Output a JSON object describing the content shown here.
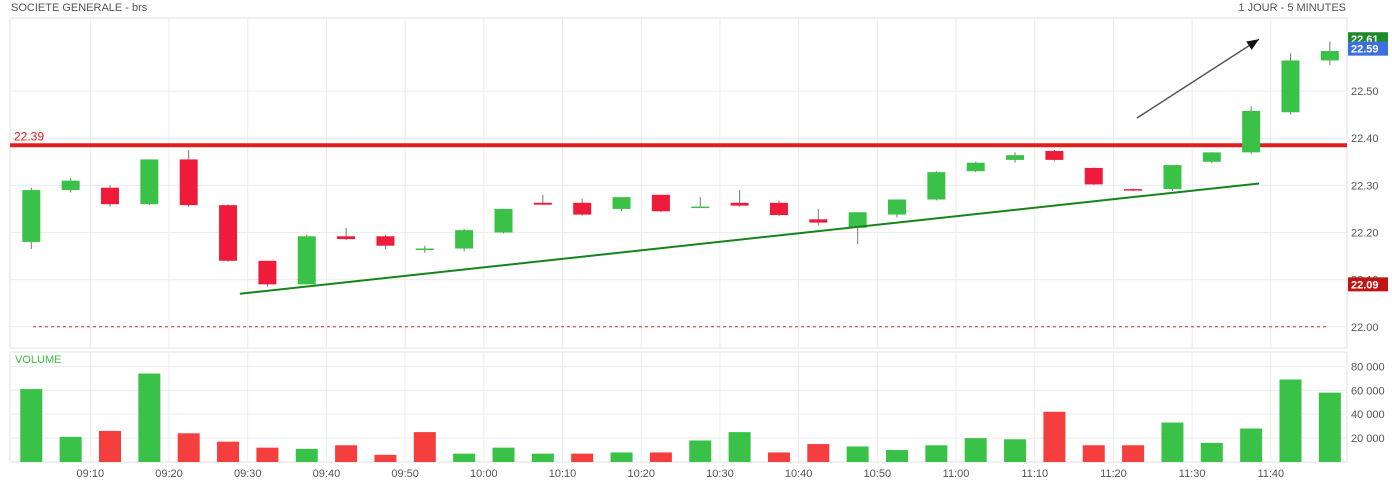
{
  "header": {
    "title": "SOCIETE GENERALE - brs",
    "period": "1 JOUR - 5 MINUTES"
  },
  "chart_data": [
    {
      "type": "candlestick",
      "ylim": [
        21.955,
        22.655
      ],
      "yticks": [
        "22.00",
        "22.10",
        "22.20",
        "22.30",
        "22.40",
        "22.50"
      ],
      "grid": true,
      "colors": {
        "up": "#3ac248",
        "down": "#ee1c3a",
        "wick": "#777777"
      },
      "candles": [
        {
          "o": 22.18,
          "h": 22.295,
          "l": 22.165,
          "c": 22.29
        },
        {
          "o": 22.29,
          "h": 22.315,
          "l": 22.285,
          "c": 22.31
        },
        {
          "o": 22.295,
          "h": 22.3,
          "l": 22.255,
          "c": 22.26
        },
        {
          "o": 22.26,
          "h": 22.355,
          "l": 22.258,
          "c": 22.355
        },
        {
          "o": 22.355,
          "h": 22.375,
          "l": 22.255,
          "c": 22.258
        },
        {
          "o": 22.258,
          "h": 22.26,
          "l": 22.138,
          "c": 22.14
        },
        {
          "o": 22.14,
          "h": 22.14,
          "l": 22.085,
          "c": 22.09
        },
        {
          "o": 22.09,
          "h": 22.195,
          "l": 22.09,
          "c": 22.192
        },
        {
          "o": 22.192,
          "h": 22.21,
          "l": 22.184,
          "c": 22.186
        },
        {
          "o": 22.192,
          "h": 22.195,
          "l": 22.165,
          "c": 22.172
        },
        {
          "o": 22.166,
          "h": 22.172,
          "l": 22.157,
          "c": 22.166
        },
        {
          "o": 22.166,
          "h": 22.208,
          "l": 22.16,
          "c": 22.205
        },
        {
          "o": 22.2,
          "h": 22.25,
          "l": 22.198,
          "c": 22.25
        },
        {
          "o": 22.263,
          "h": 22.28,
          "l": 22.258,
          "c": 22.259
        },
        {
          "o": 22.263,
          "h": 22.272,
          "l": 22.236,
          "c": 22.238
        },
        {
          "o": 22.25,
          "h": 22.275,
          "l": 22.245,
          "c": 22.275
        },
        {
          "o": 22.28,
          "h": 22.28,
          "l": 22.243,
          "c": 22.245
        },
        {
          "o": 22.255,
          "h": 22.275,
          "l": 22.252,
          "c": 22.255
        },
        {
          "o": 22.263,
          "h": 22.29,
          "l": 22.255,
          "c": 22.257
        },
        {
          "o": 22.263,
          "h": 22.268,
          "l": 22.235,
          "c": 22.237
        },
        {
          "o": 22.228,
          "h": 22.25,
          "l": 22.215,
          "c": 22.221
        },
        {
          "o": 22.21,
          "h": 22.243,
          "l": 22.175,
          "c": 22.243
        },
        {
          "o": 22.238,
          "h": 22.27,
          "l": 22.232,
          "c": 22.27
        },
        {
          "o": 22.27,
          "h": 22.33,
          "l": 22.268,
          "c": 22.328
        },
        {
          "o": 22.33,
          "h": 22.35,
          "l": 22.328,
          "c": 22.348
        },
        {
          "o": 22.354,
          "h": 22.37,
          "l": 22.348,
          "c": 22.364
        },
        {
          "o": 22.373,
          "h": 22.375,
          "l": 22.352,
          "c": 22.354
        },
        {
          "o": 22.337,
          "h": 22.338,
          "l": 22.301,
          "c": 22.302
        },
        {
          "o": 22.292,
          "h": 22.294,
          "l": 22.288,
          "c": 22.291
        },
        {
          "o": 22.292,
          "h": 22.343,
          "l": 22.288,
          "c": 22.343
        },
        {
          "o": 22.35,
          "h": 22.37,
          "l": 22.347,
          "c": 22.37
        },
        {
          "o": 22.37,
          "h": 22.468,
          "l": 22.366,
          "c": 22.458
        },
        {
          "o": 22.455,
          "h": 22.58,
          "l": 22.45,
          "c": 22.565
        },
        {
          "o": 22.565,
          "h": 22.605,
          "l": 22.555,
          "c": 22.585
        }
      ],
      "price_labels": [
        {
          "value": 22.61,
          "text": "22.61",
          "color": "#1e8a2a"
        },
        {
          "value": 22.59,
          "text": "22.59",
          "color": "#3d6fe0"
        },
        {
          "value": 22.09,
          "text": "22.09",
          "color": "#c01414"
        }
      ],
      "annotations": {
        "resistance": {
          "value": 22.385,
          "text": "22.39",
          "color": "#e01e1e"
        },
        "support_dashed": {
          "value": 22.0
        },
        "trendline": {
          "from": {
            "i": 5.3,
            "v": 22.07
          },
          "to": {
            "i": 31.2,
            "v": 22.304
          },
          "color": "#15841a"
        },
        "arrow": {
          "from": {
            "i": 28.1,
            "v": 22.443
          },
          "to": {
            "i": 31.2,
            "v": 22.61
          },
          "color": "#555555"
        }
      }
    },
    {
      "type": "bar",
      "title": "VOLUME",
      "ylim": [
        0,
        92000
      ],
      "yticks": [
        {
          "value": 20000,
          "label": "20 000"
        },
        {
          "value": 40000,
          "label": "40 000"
        },
        {
          "value": 60000,
          "label": "60 000"
        },
        {
          "value": 80000,
          "label": "80 000"
        }
      ],
      "colors": {
        "up": "#3ac248",
        "down": "#f53e3e"
      },
      "values": [
        61000,
        21000,
        26000,
        74000,
        24000,
        17000,
        12000,
        11000,
        14000,
        6000,
        25000,
        7000,
        12000,
        7000,
        7000,
        8000,
        8000,
        18000,
        25000,
        8000,
        15000,
        13000,
        10000,
        14000,
        20000,
        19000,
        42000,
        14000,
        14000,
        33000,
        16000,
        28000,
        69000,
        58000
      ],
      "directions": [
        "up",
        "up",
        "down",
        "up",
        "down",
        "down",
        "down",
        "up",
        "down",
        "down",
        "down",
        "up",
        "up",
        "up",
        "down",
        "up",
        "down",
        "up",
        "up",
        "down",
        "down",
        "up",
        "up",
        "up",
        "up",
        "up",
        "down",
        "down",
        "down",
        "up",
        "up",
        "up",
        "up",
        "up"
      ],
      "x_ticks": [
        {
          "i": 2,
          "label": "09:10"
        },
        {
          "i": 4,
          "label": "09:20"
        },
        {
          "i": 6,
          "label": "09:30"
        },
        {
          "i": 8,
          "label": "09:40"
        },
        {
          "i": 10,
          "label": "09:50"
        },
        {
          "i": 12,
          "label": "10:00"
        },
        {
          "i": 14,
          "label": "10:10"
        },
        {
          "i": 16,
          "label": "10:20"
        },
        {
          "i": 18,
          "label": "10:30"
        },
        {
          "i": 20,
          "label": "10:40"
        },
        {
          "i": 22,
          "label": "10:50"
        },
        {
          "i": 24,
          "label": "11:00"
        },
        {
          "i": 26,
          "label": "11:10"
        },
        {
          "i": 28,
          "label": "11:20"
        },
        {
          "i": 30,
          "label": "11:30"
        },
        {
          "i": 32,
          "label": "11:40"
        }
      ]
    }
  ]
}
